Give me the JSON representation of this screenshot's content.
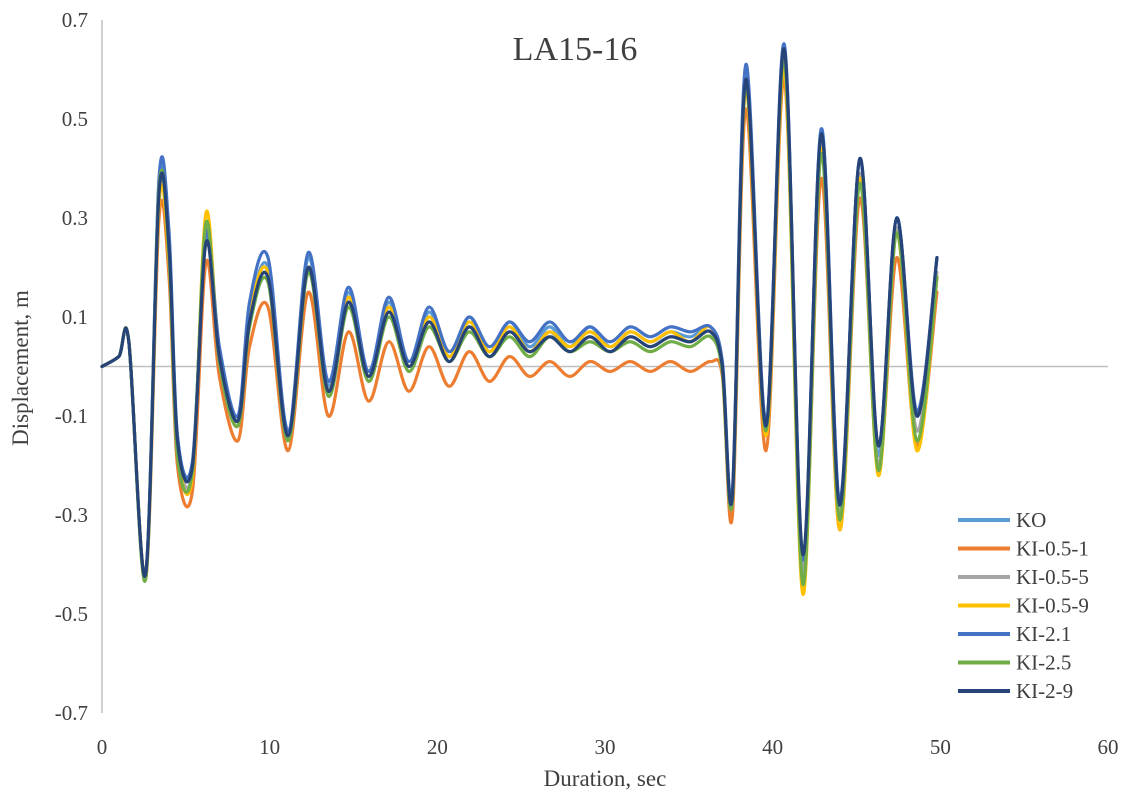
{
  "chart_data": {
    "type": "line",
    "title": "LA15-16",
    "xlabel": "Duration, sec",
    "ylabel": "Displacement, m",
    "xlim": [
      0,
      60
    ],
    "ylim": [
      -0.7,
      0.7
    ],
    "xticks": [
      0,
      10,
      20,
      30,
      40,
      50,
      60
    ],
    "yticks": [
      -0.7,
      -0.5,
      -0.3,
      -0.1,
      0.1,
      0.3,
      0.5,
      0.7
    ],
    "ytick_labels": [
      "-0.7",
      "-0.5",
      "-0.3",
      "-0.1",
      "0.1",
      "0.3",
      "0.5",
      "0.7"
    ],
    "grid": false,
    "legend_position": "bottom-right",
    "series": [
      {
        "name": "KO",
        "color": "#5B9BD5",
        "x": [
          0,
          1,
          1.6,
          2.6,
          3.4,
          4.0,
          4.5,
          5.4,
          6.2,
          7.0,
          8.1,
          8.8,
          9.9,
          11.1,
          12.3,
          13.5,
          14.7,
          15.9,
          17.1,
          18.3,
          19.5,
          20.7,
          21.9,
          23.1,
          24.3,
          25.5,
          26.7,
          27.9,
          29.1,
          30.3,
          31.5,
          32.7,
          33.9,
          35.1,
          36.3,
          37.0,
          37.6,
          38.4,
          39.6,
          40.7,
          41.8,
          42.9,
          44.0,
          45.2,
          46.3,
          47.4,
          48.6,
          49.8
        ],
        "y": [
          0,
          0.02,
          0.05,
          -0.42,
          0.37,
          0.24,
          -0.14,
          -0.2,
          0.26,
          0.03,
          -0.11,
          0.1,
          0.2,
          -0.14,
          0.22,
          -0.04,
          0.15,
          -0.02,
          0.13,
          0.0,
          0.11,
          0.02,
          0.1,
          0.03,
          0.09,
          0.04,
          0.08,
          0.04,
          0.08,
          0.04,
          0.07,
          0.05,
          0.07,
          0.06,
          0.08,
          0.0,
          -0.26,
          0.6,
          -0.12,
          0.64,
          -0.4,
          0.48,
          -0.28,
          0.42,
          -0.18,
          0.3,
          -0.1,
          0.22
        ]
      },
      {
        "name": "KI-0.5-1",
        "color": "#ED7D31",
        "x": [
          0,
          1,
          1.6,
          2.6,
          3.4,
          4.0,
          4.5,
          5.4,
          6.2,
          7.0,
          8.1,
          8.8,
          9.9,
          11.1,
          12.3,
          13.5,
          14.7,
          15.9,
          17.1,
          18.3,
          19.5,
          20.7,
          21.9,
          23.1,
          24.3,
          25.5,
          26.7,
          27.9,
          29.1,
          30.3,
          31.5,
          32.7,
          33.9,
          35.1,
          36.3,
          37.0,
          37.6,
          38.4,
          39.6,
          40.7,
          41.8,
          42.9,
          44.0,
          45.2,
          46.3,
          47.4,
          48.6,
          49.8
        ],
        "y": [
          0,
          0.02,
          0.05,
          -0.43,
          0.3,
          0.18,
          -0.2,
          -0.25,
          0.21,
          -0.02,
          -0.15,
          0.04,
          0.12,
          -0.17,
          0.15,
          -0.1,
          0.07,
          -0.07,
          0.05,
          -0.05,
          0.04,
          -0.04,
          0.03,
          -0.03,
          0.02,
          -0.02,
          0.01,
          -0.02,
          0.01,
          -0.01,
          0.01,
          -0.01,
          0.01,
          -0.01,
          0.01,
          -0.02,
          -0.3,
          0.52,
          -0.17,
          0.58,
          -0.43,
          0.38,
          -0.33,
          0.34,
          -0.21,
          0.22,
          -0.16,
          0.15
        ]
      },
      {
        "name": "KI-0.5-5",
        "color": "#A5A5A5",
        "x": [
          0,
          1,
          1.6,
          2.6,
          3.4,
          4.0,
          4.5,
          5.4,
          6.2,
          7.0,
          8.1,
          8.8,
          9.9,
          11.1,
          12.3,
          13.5,
          14.7,
          15.9,
          17.1,
          18.3,
          19.5,
          20.7,
          21.9,
          23.1,
          24.3,
          25.5,
          26.7,
          27.9,
          29.1,
          30.3,
          31.5,
          32.7,
          33.9,
          35.1,
          36.3,
          37.0,
          37.6,
          38.4,
          39.6,
          40.7,
          41.8,
          42.9,
          44.0,
          45.2,
          46.3,
          47.4,
          48.6,
          49.8
        ],
        "y": [
          0,
          0.02,
          0.05,
          -0.42,
          0.34,
          0.22,
          -0.16,
          -0.21,
          0.28,
          0.01,
          -0.12,
          0.09,
          0.18,
          -0.15,
          0.2,
          -0.05,
          0.13,
          -0.03,
          0.11,
          -0.01,
          0.09,
          0.01,
          0.08,
          0.02,
          0.07,
          0.03,
          0.07,
          0.03,
          0.06,
          0.03,
          0.06,
          0.04,
          0.06,
          0.05,
          0.07,
          -0.01,
          -0.27,
          0.57,
          -0.13,
          0.62,
          -0.42,
          0.45,
          -0.3,
          0.39,
          -0.2,
          0.28,
          -0.13,
          0.19
        ]
      },
      {
        "name": "KI-0.5-9",
        "color": "#FFC000",
        "x": [
          0,
          1,
          1.6,
          2.6,
          3.4,
          4.0,
          4.5,
          5.4,
          6.2,
          7.0,
          8.1,
          8.8,
          9.9,
          11.1,
          12.3,
          13.5,
          14.7,
          15.9,
          17.1,
          18.3,
          19.5,
          20.7,
          21.9,
          23.1,
          24.3,
          25.5,
          26.7,
          27.9,
          29.1,
          30.3,
          31.5,
          32.7,
          33.9,
          35.1,
          36.3,
          37.0,
          37.6,
          38.4,
          39.6,
          40.7,
          41.8,
          42.9,
          44.0,
          45.2,
          46.3,
          47.4,
          48.6,
          49.8
        ],
        "y": [
          0,
          0.02,
          0.05,
          -0.42,
          0.33,
          0.21,
          -0.17,
          -0.22,
          0.31,
          0.02,
          -0.12,
          0.1,
          0.19,
          -0.15,
          0.2,
          -0.05,
          0.14,
          -0.02,
          0.12,
          0.0,
          0.1,
          0.02,
          0.09,
          0.03,
          0.08,
          0.03,
          0.07,
          0.04,
          0.07,
          0.04,
          0.07,
          0.05,
          0.07,
          0.05,
          0.08,
          -0.01,
          -0.27,
          0.56,
          -0.14,
          0.6,
          -0.46,
          0.44,
          -0.33,
          0.38,
          -0.22,
          0.27,
          -0.17,
          0.18
        ]
      },
      {
        "name": "KI-2.1",
        "color": "#4472C4",
        "x": [
          0,
          1,
          1.6,
          2.6,
          3.4,
          4.0,
          4.5,
          5.4,
          6.2,
          7.0,
          8.1,
          8.8,
          9.9,
          11.1,
          12.3,
          13.5,
          14.7,
          15.9,
          17.1,
          18.3,
          19.5,
          20.7,
          21.9,
          23.1,
          24.3,
          25.5,
          26.7,
          27.9,
          29.1,
          30.3,
          31.5,
          32.7,
          33.9,
          35.1,
          36.3,
          37.0,
          37.6,
          38.4,
          39.6,
          40.7,
          41.8,
          42.9,
          44.0,
          45.2,
          46.3,
          47.4,
          48.6,
          49.8
        ],
        "y": [
          0,
          0.02,
          0.05,
          -0.42,
          0.38,
          0.27,
          -0.14,
          -0.19,
          0.27,
          0.04,
          -0.1,
          0.13,
          0.22,
          -0.13,
          0.23,
          -0.03,
          0.16,
          -0.01,
          0.14,
          0.01,
          0.12,
          0.03,
          0.1,
          0.04,
          0.09,
          0.05,
          0.09,
          0.05,
          0.08,
          0.05,
          0.08,
          0.06,
          0.08,
          0.07,
          0.08,
          0.01,
          -0.25,
          0.61,
          -0.11,
          0.65,
          -0.39,
          0.48,
          -0.27,
          0.42,
          -0.16,
          0.3,
          -0.09,
          0.22
        ]
      },
      {
        "name": "KI-2.5",
        "color": "#70AD47",
        "x": [
          0,
          1,
          1.6,
          2.6,
          3.4,
          4.0,
          4.5,
          5.4,
          6.2,
          7.0,
          8.1,
          8.8,
          9.9,
          11.1,
          12.3,
          13.5,
          14.7,
          15.9,
          17.1,
          18.3,
          19.5,
          20.7,
          21.9,
          23.1,
          24.3,
          25.5,
          26.7,
          27.9,
          29.1,
          30.3,
          31.5,
          32.7,
          33.9,
          35.1,
          36.3,
          37.0,
          37.6,
          38.4,
          39.6,
          40.7,
          41.8,
          42.9,
          44.0,
          45.2,
          46.3,
          47.4,
          48.6,
          49.8
        ],
        "y": [
          0,
          0.02,
          0.05,
          -0.43,
          0.36,
          0.22,
          -0.18,
          -0.21,
          0.29,
          0.01,
          -0.12,
          0.08,
          0.17,
          -0.15,
          0.19,
          -0.06,
          0.12,
          -0.03,
          0.1,
          -0.01,
          0.08,
          0.01,
          0.07,
          0.02,
          0.06,
          0.02,
          0.06,
          0.03,
          0.05,
          0.03,
          0.05,
          0.03,
          0.05,
          0.04,
          0.06,
          -0.01,
          -0.27,
          0.57,
          -0.13,
          0.62,
          -0.44,
          0.43,
          -0.31,
          0.37,
          -0.21,
          0.27,
          -0.15,
          0.18
        ]
      },
      {
        "name": "KI-2-9",
        "color": "#264478",
        "x": [
          0,
          1,
          1.6,
          2.6,
          3.4,
          4.0,
          4.5,
          5.4,
          6.2,
          7.0,
          8.1,
          8.8,
          9.9,
          11.1,
          12.3,
          13.5,
          14.7,
          15.9,
          17.1,
          18.3,
          19.5,
          20.7,
          21.9,
          23.1,
          24.3,
          25.5,
          26.7,
          27.9,
          29.1,
          30.3,
          31.5,
          32.7,
          33.9,
          35.1,
          36.3,
          37.0,
          37.6,
          38.4,
          39.6,
          40.7,
          41.8,
          42.9,
          44.0,
          45.2,
          46.3,
          47.4,
          48.6,
          49.8
        ],
        "y": [
          0,
          0.02,
          0.05,
          -0.42,
          0.35,
          0.24,
          -0.15,
          -0.2,
          0.25,
          0.02,
          -0.11,
          0.09,
          0.18,
          -0.14,
          0.2,
          -0.05,
          0.13,
          -0.02,
          0.11,
          0.0,
          0.09,
          0.01,
          0.08,
          0.02,
          0.07,
          0.03,
          0.06,
          0.03,
          0.06,
          0.03,
          0.06,
          0.04,
          0.06,
          0.05,
          0.07,
          0.0,
          -0.26,
          0.58,
          -0.12,
          0.64,
          -0.38,
          0.47,
          -0.28,
          0.42,
          -0.16,
          0.3,
          -0.1,
          0.22
        ]
      }
    ]
  }
}
